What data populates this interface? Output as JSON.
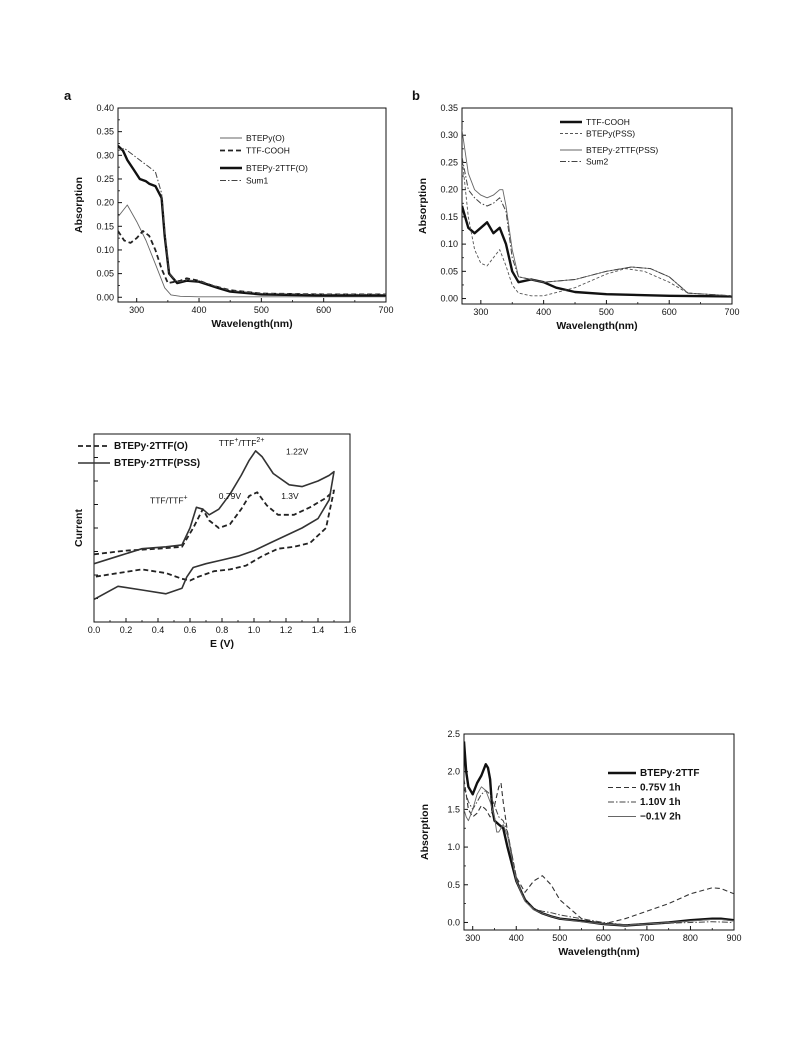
{
  "chart_data": [
    {
      "id": "a",
      "type": "line",
      "panel_label": "a",
      "xlabel": "Wavelength(nm)",
      "ylabel": "Absorption",
      "xlim": [
        270,
        700
      ],
      "ylim": [
        -0.01,
        0.4
      ],
      "xticks": [
        300,
        400,
        500,
        600,
        700
      ],
      "yticks": [
        0.0,
        0.05,
        0.1,
        0.15,
        0.2,
        0.25,
        0.3,
        0.35,
        0.4
      ],
      "ytick_decimals": 2,
      "legend_position": "upper-right",
      "series": [
        {
          "name": "BTEPy(O)",
          "style": "thin-solid",
          "x": [
            270,
            285,
            300,
            315,
            330,
            345,
            355,
            370,
            400,
            500,
            700
          ],
          "y": [
            0.17,
            0.195,
            0.16,
            0.12,
            0.07,
            0.02,
            0.005,
            0.002,
            0.001,
            0.001,
            0.001
          ]
        },
        {
          "name": "TTF-COOH",
          "style": "dashed-bold",
          "x": [
            270,
            280,
            290,
            300,
            310,
            320,
            330,
            340,
            350,
            370,
            380,
            400,
            420,
            450,
            500,
            600,
            700
          ],
          "y": [
            0.14,
            0.12,
            0.115,
            0.125,
            0.14,
            0.13,
            0.1,
            0.06,
            0.03,
            0.035,
            0.04,
            0.035,
            0.025,
            0.015,
            0.008,
            0.006,
            0.006
          ]
        },
        {
          "name": "BTEPy·2TTF(O)",
          "style": "bold-solid",
          "x": [
            270,
            278,
            285,
            295,
            305,
            315,
            320,
            330,
            340,
            345,
            352,
            365,
            380,
            400,
            430,
            450,
            500,
            600,
            700
          ],
          "y": [
            0.32,
            0.31,
            0.29,
            0.27,
            0.25,
            0.245,
            0.24,
            0.235,
            0.21,
            0.13,
            0.05,
            0.03,
            0.035,
            0.033,
            0.02,
            0.012,
            0.006,
            0.004,
            0.004
          ]
        },
        {
          "name": "Sum1",
          "style": "dash-dot",
          "x": [
            270,
            280,
            290,
            300,
            310,
            320,
            330,
            340,
            345,
            352,
            365,
            380,
            400,
            430,
            450,
            500,
            600,
            700
          ],
          "y": [
            0.31,
            0.315,
            0.305,
            0.295,
            0.285,
            0.275,
            0.265,
            0.22,
            0.14,
            0.05,
            0.032,
            0.036,
            0.034,
            0.022,
            0.014,
            0.008,
            0.006,
            0.006
          ]
        }
      ]
    },
    {
      "id": "b",
      "type": "line",
      "panel_label": "b",
      "xlabel": "Wavelength(nm)",
      "ylabel": "Absorption",
      "xlim": [
        270,
        700
      ],
      "ylim": [
        -0.01,
        0.35
      ],
      "xticks": [
        300,
        400,
        500,
        600,
        700
      ],
      "yticks": [
        0.0,
        0.05,
        0.1,
        0.15,
        0.2,
        0.25,
        0.3,
        0.35
      ],
      "ytick_decimals": 2,
      "legend_position": "upper-right",
      "series": [
        {
          "name": "TTF-COOH",
          "style": "bold-solid",
          "x": [
            270,
            280,
            290,
            300,
            310,
            320,
            330,
            340,
            350,
            360,
            380,
            400,
            420,
            450,
            500,
            600,
            700
          ],
          "y": [
            0.17,
            0.13,
            0.12,
            0.13,
            0.14,
            0.12,
            0.13,
            0.1,
            0.05,
            0.03,
            0.035,
            0.03,
            0.02,
            0.012,
            0.008,
            0.005,
            0.004
          ]
        },
        {
          "name": "BTEPy(PSS)",
          "style": "thin-dashed",
          "x": [
            270,
            280,
            290,
            300,
            310,
            320,
            330,
            340,
            350,
            360,
            380,
            400,
            450,
            500,
            530,
            560,
            600,
            630,
            700
          ],
          "y": [
            0.26,
            0.15,
            0.09,
            0.065,
            0.06,
            0.075,
            0.09,
            0.06,
            0.025,
            0.01,
            0.005,
            0.005,
            0.02,
            0.045,
            0.055,
            0.05,
            0.03,
            0.01,
            0.005
          ]
        },
        {
          "name": "BTEPy·2TTF(PSS)",
          "style": "thin-solid",
          "x": [
            270,
            280,
            290,
            300,
            310,
            320,
            330,
            335,
            340,
            350,
            360,
            380,
            400,
            450,
            500,
            540,
            570,
            600,
            630,
            700
          ],
          "y": [
            0.31,
            0.23,
            0.2,
            0.19,
            0.185,
            0.19,
            0.2,
            0.2,
            0.17,
            0.09,
            0.04,
            0.035,
            0.03,
            0.035,
            0.05,
            0.058,
            0.055,
            0.04,
            0.01,
            0.005
          ]
        },
        {
          "name": "Sum2",
          "style": "dash-dot",
          "x": [
            270,
            280,
            290,
            300,
            310,
            320,
            330,
            340,
            350,
            360,
            380,
            400,
            450,
            500,
            540,
            570,
            600,
            630,
            700
          ],
          "y": [
            0.26,
            0.2,
            0.185,
            0.175,
            0.17,
            0.175,
            0.185,
            0.16,
            0.075,
            0.04,
            0.035,
            0.03,
            0.035,
            0.05,
            0.058,
            0.055,
            0.04,
            0.01,
            0.005
          ]
        }
      ]
    },
    {
      "id": "c",
      "type": "line",
      "xlabel": "E (V)",
      "ylabel": "Current",
      "xlim": [
        0.0,
        1.6
      ],
      "ylim": [
        0,
        10
      ],
      "xticks": [
        0.0,
        0.2,
        0.4,
        0.6,
        0.8,
        1.0,
        1.2,
        1.4,
        1.6
      ],
      "xtick_decimals": 1,
      "yticks": [],
      "legend_position": "upper-left",
      "series": [
        {
          "name": "BTEPy·2TTF(O)",
          "style": "dashed-bold",
          "x": [
            0.0,
            0.2,
            0.4,
            0.55,
            0.62,
            0.68,
            0.72,
            0.78,
            0.85,
            0.92,
            0.97,
            1.02,
            1.08,
            1.15,
            1.25,
            1.35,
            1.45,
            1.5,
            1.45,
            1.35,
            1.25,
            1.15,
            1.05,
            0.95,
            0.85,
            0.75,
            0.65,
            0.6,
            0.55,
            0.45,
            0.3,
            0.15,
            0.0
          ],
          "y": [
            3.6,
            3.8,
            3.9,
            4.0,
            5.0,
            6.0,
            5.4,
            5.0,
            5.2,
            6.0,
            6.7,
            6.9,
            6.2,
            5.7,
            5.7,
            6.1,
            6.6,
            7.0,
            5.0,
            4.2,
            4.0,
            3.9,
            3.5,
            3.0,
            2.8,
            2.7,
            2.4,
            2.2,
            2.3,
            2.6,
            2.8,
            2.6,
            2.4
          ]
        },
        {
          "name": "BTEPy·2TTF(PSS)",
          "style": "solid",
          "x": [
            0.0,
            0.15,
            0.3,
            0.45,
            0.55,
            0.6,
            0.64,
            0.68,
            0.72,
            0.78,
            0.85,
            0.92,
            0.97,
            1.01,
            1.05,
            1.12,
            1.22,
            1.3,
            1.4,
            1.47,
            1.5,
            1.47,
            1.4,
            1.3,
            1.2,
            1.1,
            1.0,
            0.9,
            0.8,
            0.7,
            0.62,
            0.58,
            0.55,
            0.45,
            0.3,
            0.15,
            0.0
          ],
          "y": [
            3.1,
            3.5,
            3.9,
            4.0,
            4.1,
            5.0,
            6.1,
            6.0,
            5.7,
            6.0,
            6.8,
            7.8,
            8.6,
            9.1,
            8.8,
            7.9,
            7.3,
            7.2,
            7.5,
            7.8,
            8.0,
            6.5,
            5.5,
            5.0,
            4.6,
            4.2,
            3.8,
            3.5,
            3.3,
            3.1,
            2.9,
            2.4,
            1.8,
            1.5,
            1.7,
            1.9,
            1.2
          ]
        }
      ],
      "annotations": [
        {
          "text": "TTF/TTF",
          "sup": "+",
          "x": 0.35,
          "y": 6.3
        },
        {
          "text": "0.79V",
          "x": 0.78,
          "y": 6.55
        },
        {
          "text": "TTF",
          "sup": "+",
          "text2": "/TTF",
          "sup2": "2+",
          "x": 0.78,
          "y": 9.35
        },
        {
          "text": "1.22V",
          "x": 1.2,
          "y": 8.9
        },
        {
          "text": "1.3V",
          "x": 1.17,
          "y": 6.55
        }
      ]
    },
    {
      "id": "d",
      "type": "line",
      "xlabel": "Wavelength(nm)",
      "ylabel": "Absorption",
      "xlim": [
        280,
        900
      ],
      "ylim": [
        -0.1,
        2.5
      ],
      "xticks": [
        300,
        400,
        500,
        600,
        700,
        800,
        900
      ],
      "yticks": [
        0.0,
        0.5,
        1.0,
        1.5,
        2.0,
        2.5
      ],
      "ytick_decimals": 1,
      "legend_position": "upper-right",
      "series": [
        {
          "name": "BTEPy·2TTF",
          "style": "bold-solid",
          "x": [
            280,
            285,
            290,
            300,
            310,
            320,
            330,
            335,
            340,
            345,
            350,
            360,
            370,
            380,
            400,
            420,
            440,
            460,
            480,
            500,
            550,
            600,
            650,
            700,
            750,
            800,
            850,
            870,
            900
          ],
          "y": [
            2.4,
            2.0,
            1.8,
            1.7,
            1.85,
            1.95,
            2.1,
            2.05,
            1.9,
            1.5,
            1.35,
            1.3,
            1.25,
            1.0,
            0.55,
            0.3,
            0.18,
            0.12,
            0.08,
            0.05,
            0.02,
            -0.02,
            -0.04,
            -0.02,
            0.0,
            0.03,
            0.05,
            0.05,
            0.03
          ]
        },
        {
          "name": "0.75V 1h",
          "style": "dashed",
          "x": [
            280,
            290,
            300,
            310,
            320,
            330,
            340,
            350,
            360,
            365,
            370,
            380,
            400,
            420,
            440,
            460,
            480,
            500,
            550,
            600,
            650,
            700,
            750,
            800,
            850,
            870,
            900
          ],
          "y": [
            1.9,
            1.5,
            1.4,
            1.45,
            1.55,
            1.5,
            1.4,
            1.55,
            1.8,
            1.85,
            1.6,
            1.2,
            0.6,
            0.4,
            0.55,
            0.62,
            0.5,
            0.3,
            0.05,
            -0.02,
            0.05,
            0.15,
            0.25,
            0.38,
            0.46,
            0.45,
            0.38
          ]
        },
        {
          "name": "1.10V 1h",
          "style": "dash-dot",
          "x": [
            280,
            290,
            300,
            310,
            320,
            330,
            340,
            350,
            360,
            370,
            380,
            400,
            420,
            440,
            460,
            480,
            500,
            550,
            600,
            650,
            700,
            750,
            800,
            850,
            900
          ],
          "y": [
            1.8,
            1.6,
            1.5,
            1.6,
            1.7,
            1.75,
            1.7,
            1.55,
            1.4,
            1.35,
            1.2,
            0.6,
            0.3,
            0.18,
            0.15,
            0.13,
            0.1,
            0.05,
            0.0,
            -0.03,
            -0.02,
            -0.01,
            0.0,
            0.01,
            0.0
          ]
        },
        {
          "name": "−0.1V 2h",
          "style": "thin-solid",
          "x": [
            280,
            285,
            290,
            300,
            310,
            320,
            330,
            340,
            350,
            355,
            360,
            370,
            380,
            400,
            420,
            440,
            460,
            480,
            500,
            550,
            600,
            650,
            700,
            750,
            800,
            850,
            870,
            900
          ],
          "y": [
            1.5,
            1.4,
            1.35,
            1.5,
            1.7,
            1.8,
            1.75,
            1.6,
            1.4,
            1.2,
            1.2,
            1.3,
            1.15,
            0.55,
            0.28,
            0.17,
            0.12,
            0.08,
            0.05,
            0.01,
            -0.02,
            -0.04,
            -0.02,
            0.0,
            0.02,
            0.04,
            0.04,
            0.02
          ]
        }
      ]
    }
  ]
}
